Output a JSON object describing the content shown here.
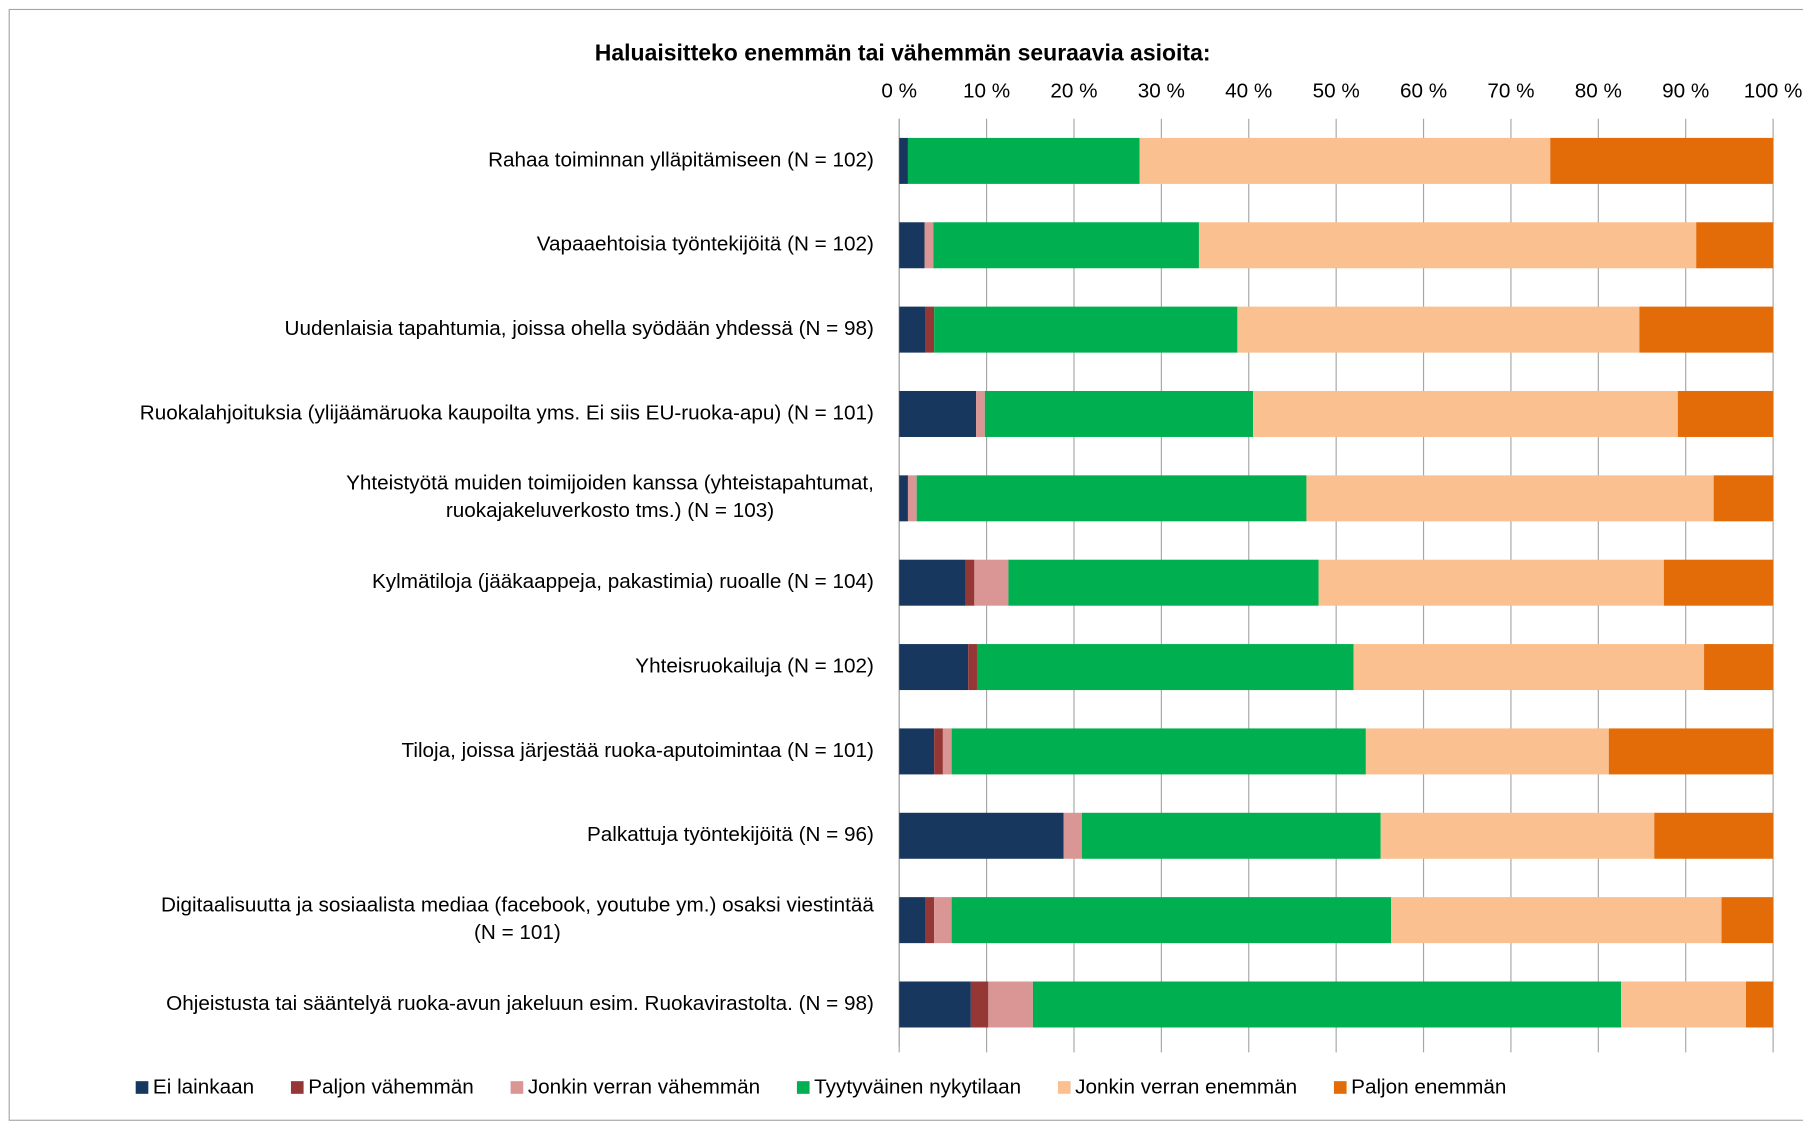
{
  "chart_data": {
    "type": "stacked_bar_horizontal",
    "title": "Haluaisitteko enemmän tai vähemmän seuraavia asioita:",
    "categories": [
      "Rahaa toiminnan ylläpitämiseen (N = 102)",
      "Vapaaehtoisia työntekijöitä (N = 102)",
      "Uudenlaisia tapahtumia, joissa ohella syödään yhdessä (N = 98)",
      "Ruokalahjoituksia (ylijäämäruoka kaupoilta yms. Ei siis EU-ruoka-apu) (N = 101)",
      "Yhteistyötä muiden toimijoiden kanssa (yhteistapahtumat,\nruokajakeluverkosto tms.) (N = 103)",
      "Kylmätiloja (jääkaappeja, pakastimia) ruoalle (N = 104)",
      "Yhteisruokailuja (N = 102)",
      "Tiloja, joissa järjestää ruoka-aputoimintaa (N = 101)",
      "Palkattuja työntekijöitä (N = 96)",
      "Digitaalisuutta ja sosiaalista mediaa (facebook, youtube ym.) osaksi viestintää\n(N = 101)",
      "Ohjeistusta tai sääntelyä ruoka-avun jakeluun esim. Ruokavirastolta. (N = 98)"
    ],
    "series": [
      {
        "name": "Ei lainkaan",
        "color": "#17375e",
        "values": [
          1,
          2.9,
          3,
          8.8,
          1,
          7.6,
          7.9,
          4,
          18.8,
          3,
          8.2
        ]
      },
      {
        "name": "Paljon vähemmän",
        "color": "#953735",
        "values": [
          0,
          0,
          1,
          0,
          0,
          1,
          1,
          1,
          0,
          1,
          2
        ]
      },
      {
        "name": "Jonkin verran vähemmän",
        "color": "#d99694",
        "values": [
          0,
          1,
          0,
          1,
          1,
          3.9,
          0,
          1,
          2.1,
          2,
          5.1
        ]
      },
      {
        "name": "Tyytyväinen nykytilaan",
        "color": "#00b050",
        "values": [
          26.5,
          30.4,
          34.7,
          30.7,
          44.6,
          35.5,
          43.1,
          47.4,
          34.2,
          50.3,
          67.3
        ]
      },
      {
        "name": "Jonkin verran enemmän",
        "color": "#fac090",
        "values": [
          47,
          56.9,
          46,
          48.6,
          46.6,
          39.5,
          40.1,
          27.8,
          31.3,
          37.8,
          14.3
        ]
      },
      {
        "name": "Paljon enemmän",
        "color": "#e36c09",
        "values": [
          25.5,
          8.8,
          15.3,
          10.9,
          6.8,
          12.5,
          7.9,
          18.8,
          13.6,
          5.9,
          3.1
        ]
      }
    ],
    "xlim": [
      0,
      100
    ],
    "xticks": [
      {
        "value": 0,
        "label": "0 %"
      },
      {
        "value": 10,
        "label": "10 %"
      },
      {
        "value": 20,
        "label": "20 %"
      },
      {
        "value": 30,
        "label": "30 %"
      },
      {
        "value": 40,
        "label": "40 %"
      },
      {
        "value": 50,
        "label": "50 %"
      },
      {
        "value": 60,
        "label": "60 %"
      },
      {
        "value": 70,
        "label": "70 %"
      },
      {
        "value": 80,
        "label": "80 %"
      },
      {
        "value": 90,
        "label": "90 %"
      },
      {
        "value": 100,
        "label": "100 %"
      }
    ],
    "grid": true,
    "legend": "bottom"
  }
}
